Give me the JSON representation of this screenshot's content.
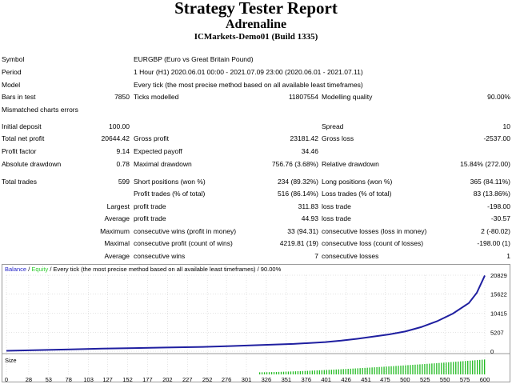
{
  "header": {
    "title": "Strategy Tester Report",
    "subtitle": "Adrenaline",
    "server": "ICMarkets-Demo01 (Build 1335)"
  },
  "info": [
    {
      "label": "Symbol",
      "value": "EURGBP (Euro vs Great Britain Pound)"
    },
    {
      "label": "Period",
      "value": "1 Hour (H1) 2020.06.01 00:00 - 2021.07.09 23:00 (2020.06.01 - 2021.07.11)"
    },
    {
      "label": "Model",
      "value": "Every tick (the most precise method based on all available least timeframes)"
    }
  ],
  "bars": {
    "label": "Bars in test",
    "value": "7850",
    "ticks_label": "Ticks modelled",
    "ticks_value": "11807554",
    "quality_label": "Modelling quality",
    "quality_value": "90.00%"
  },
  "mismatched_label": "Mismatched charts errors",
  "stats": {
    "initial_deposit_label": "Initial deposit",
    "initial_deposit": "100.00",
    "spread_label": "Spread",
    "spread": "10",
    "net_profit_label": "Total net profit",
    "net_profit": "20644.42",
    "gross_profit_label": "Gross profit",
    "gross_profit": "23181.42",
    "gross_loss_label": "Gross loss",
    "gross_loss": "-2537.00",
    "profit_factor_label": "Profit factor",
    "profit_factor": "9.14",
    "expected_payoff_label": "Expected payoff",
    "expected_payoff": "34.46",
    "abs_dd_label": "Absolute drawdown",
    "abs_dd": "0.78",
    "max_dd_label": "Maximal drawdown",
    "max_dd": "756.76 (3.68%)",
    "rel_dd_label": "Relative drawdown",
    "rel_dd": "15.84% (272.00)"
  },
  "trades": {
    "total_label": "Total trades",
    "total": "599",
    "short_label": "Short positions (won %)",
    "short": "234 (89.32%)",
    "long_label": "Long positions (won %)",
    "long": "365 (84.11%)",
    "profit_trades_label": "Profit trades (% of total)",
    "profit_trades": "516 (86.14%)",
    "loss_trades_label": "Loss trades (% of total)",
    "loss_trades": "83 (13.86%)",
    "largest_label": "Largest",
    "largest_profit_label": "profit trade",
    "largest_profit": "311.83",
    "largest_loss_label": "loss trade",
    "largest_loss": "-198.00",
    "average_label": "Average",
    "average_profit_label": "profit trade",
    "average_profit": "44.93",
    "average_loss_label": "loss trade",
    "average_loss": "-30.57",
    "maximum_label": "Maximum",
    "max_wins_label": "consecutive wins (profit in money)",
    "max_wins": "33 (94.31)",
    "max_losses_label": "consecutive losses (loss in money)",
    "max_losses": "2 (-80.02)",
    "maximal_label": "Maximal",
    "maximal_profit_label": "consecutive profit (count of wins)",
    "maximal_profit": "4219.81 (19)",
    "maximal_loss_label": "consecutive loss (count of losses)",
    "maximal_loss": "-198.00 (1)",
    "avg_consec_label": "Average",
    "avg_wins_label": "consecutive wins",
    "avg_wins": "7",
    "avg_losses_label": "consecutive losses",
    "avg_losses": "1"
  },
  "chart_data": {
    "type": "line",
    "legend": {
      "balance": "Balance",
      "equity": "Equity",
      "description": "Every tick (the most precise method based on all available least timeframes)",
      "quality": "90.00%",
      "placement": "top-left"
    },
    "colors": {
      "balance": "#1f1fa0",
      "equity": "#2ecc2e",
      "size": "#22bb22",
      "grid": "#c8c8c8"
    },
    "y_ticks": [
      0,
      5207,
      10415,
      15622,
      20829
    ],
    "ylim": [
      0,
      20829
    ],
    "x_ticks": [
      0,
      28,
      53,
      78,
      103,
      127,
      152,
      177,
      202,
      227,
      252,
      276,
      301,
      326,
      351,
      376,
      401,
      426,
      451,
      475,
      500,
      525,
      550,
      575,
      600
    ],
    "xlim": [
      0,
      600
    ],
    "size_label": "Size",
    "series": [
      {
        "name": "Balance",
        "x": [
          0,
          40,
          80,
          120,
          160,
          200,
          240,
          280,
          320,
          360,
          400,
          420,
          440,
          460,
          480,
          500,
          520,
          540,
          560,
          580,
          590,
          600
        ],
        "values": [
          100,
          300,
          500,
          700,
          850,
          1000,
          1150,
          1400,
          1700,
          2000,
          2500,
          2900,
          3400,
          4000,
          4600,
          5400,
          6600,
          8200,
          10300,
          13200,
          16000,
          20744
        ]
      }
    ],
    "size_bars": {
      "start": 317,
      "end": 600,
      "min": 0.12,
      "max": 0.85
    }
  }
}
